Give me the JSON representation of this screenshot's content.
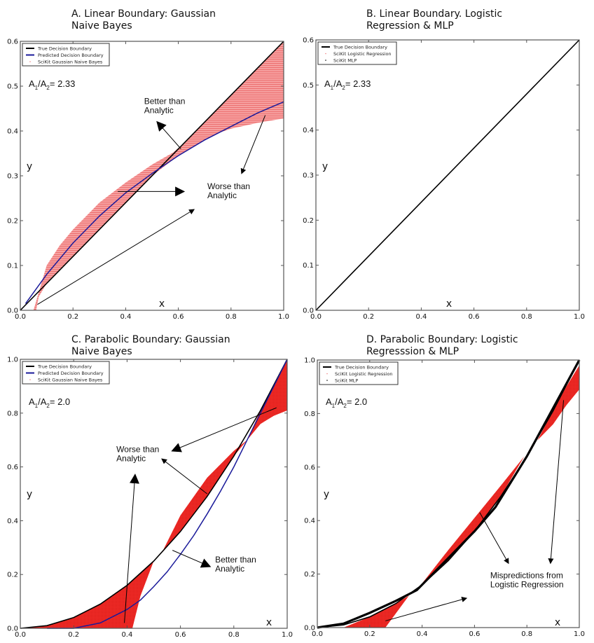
{
  "chart_data": [
    {
      "id": "A",
      "type": "line",
      "title_lines": [
        "A. Linear Boundary: Gaussian",
        "Naive Bayes"
      ],
      "xlabel": "x",
      "ylabel": "y",
      "xlim": [
        0.0,
        1.0
      ],
      "ylim": [
        0.0,
        0.6
      ],
      "xticks": [
        "0.0",
        "0.2",
        "0.4",
        "0.6",
        "0.8",
        "1.0"
      ],
      "yticks": [
        "0.0",
        "0.1",
        "0.2",
        "0.3",
        "0.4",
        "0.5",
        "0.6"
      ],
      "ratio_label": {
        "a1": "A",
        "sub1": "1",
        "a2": "A",
        "sub2": "2",
        "value": "= 2.33"
      },
      "legend": {
        "placement": "top-left",
        "entries": [
          {
            "label": "True Decision Boundary",
            "style": "line",
            "color": "#000000"
          },
          {
            "label": "Predicted Decision Boundary",
            "style": "line",
            "color": "#1a1a9a"
          },
          {
            "label": "SciKit Gaussian Naive Bayes",
            "style": "dot",
            "color": "#f08080"
          }
        ]
      },
      "series": [
        {
          "name": "True Decision Boundary",
          "color": "#000000",
          "x": [
            0.0,
            1.0
          ],
          "y": [
            0.0,
            0.6
          ]
        },
        {
          "name": "Predicted Decision Boundary",
          "color": "#1a1a9a",
          "x": [
            0.02,
            0.1,
            0.2,
            0.3,
            0.4,
            0.5,
            0.6,
            0.7,
            0.8,
            0.9,
            1.0
          ],
          "y": [
            0.015,
            0.08,
            0.15,
            0.21,
            0.262,
            0.305,
            0.345,
            0.38,
            0.41,
            0.44,
            0.465
          ]
        }
      ],
      "fill_regions": [
        {
          "name": "SciKit Gaussian Naive Bayes mispredictions",
          "color": "#f28b8b",
          "upper": {
            "x": [
              0.0,
              0.05,
              0.1,
              0.15,
              0.2,
              0.3,
              0.4,
              0.5,
              0.58,
              0.62,
              0.7,
              0.8,
              0.9,
              1.0
            ],
            "y": [
              0.0,
              0.0,
              0.1,
              0.145,
              0.18,
              0.24,
              0.285,
              0.325,
              0.352,
              0.372,
              0.42,
              0.48,
              0.54,
              0.6
            ]
          },
          "lower": {
            "x": [
              0.0,
              0.02,
              0.06,
              0.07,
              0.1,
              0.2,
              0.3,
              0.4,
              0.5,
              0.6,
              0.7,
              0.75,
              0.8,
              0.9,
              1.0
            ],
            "y": [
              0.0,
              0.0,
              0.0,
              0.03,
              0.06,
              0.12,
              0.18,
              0.24,
              0.3,
              0.345,
              0.38,
              0.395,
              0.405,
              0.418,
              0.428
            ]
          }
        }
      ],
      "annotations": [
        {
          "text_lines": [
            "Better than",
            "Analytic"
          ],
          "at": [
            0.47,
            0.46
          ],
          "arrow_from": [
            0.61,
            0.36
          ],
          "arrow_to": [
            0.52,
            0.42
          ]
        },
        {
          "text_lines": [
            "Worse than",
            "Analytic"
          ],
          "at": [
            0.71,
            0.27
          ],
          "arrow_from": [
            0.37,
            0.265
          ],
          "arrow_to": [
            0.62,
            0.265
          ]
        },
        {
          "text_lines": [],
          "at": [
            0.0,
            0.0
          ],
          "arrow_from": [
            0.93,
            0.435
          ],
          "arrow_to": [
            0.84,
            0.305
          ]
        },
        {
          "text_lines": [],
          "at": [
            0.0,
            0.0
          ],
          "arrow_from": [
            0.065,
            0.013
          ],
          "arrow_to": [
            0.66,
            0.225
          ]
        }
      ]
    },
    {
      "id": "B",
      "type": "line",
      "title_lines": [
        "B. Linear Boundary. Logistic",
        "Regression & MLP"
      ],
      "xlabel": "x",
      "ylabel": "y",
      "xlim": [
        0.0,
        1.0
      ],
      "ylim": [
        0.0,
        0.6
      ],
      "xticks": [
        "0.0",
        "0.2",
        "0.4",
        "0.6",
        "0.8",
        "1.0"
      ],
      "yticks": [
        "0.0",
        "0.1",
        "0.2",
        "0.3",
        "0.4",
        "0.5",
        "0.6"
      ],
      "ratio_label": {
        "a1": "A",
        "sub1": "1",
        "a2": "A",
        "sub2": "2",
        "value": "= 2.33"
      },
      "legend": {
        "placement": "top-left",
        "entries": [
          {
            "label": "True Decision Boundary",
            "style": "line",
            "color": "#000000"
          },
          {
            "label": "SciKit Logistic Regression",
            "style": "dot",
            "color": "#f08080"
          },
          {
            "label": "SciKit MLP",
            "style": "dot",
            "color": "#000000"
          }
        ]
      },
      "series": [
        {
          "name": "True Decision Boundary",
          "color": "#000000",
          "x": [
            0.0,
            1.0
          ],
          "y": [
            0.0,
            0.6
          ]
        }
      ],
      "fill_regions": [],
      "annotations": []
    },
    {
      "id": "C",
      "type": "line",
      "title_lines": [
        "C. Parabolic Boundary: Gaussian",
        "Naive Bayes"
      ],
      "xlabel": "x",
      "ylabel": "y",
      "xlim": [
        0.0,
        1.0
      ],
      "ylim": [
        0.0,
        1.0
      ],
      "xticks": [
        "0.0",
        "0.2",
        "0.4",
        "0.6",
        "0.8",
        "1.0"
      ],
      "yticks": [
        "0.0",
        "0.2",
        "0.4",
        "0.6",
        "0.8",
        "1.0"
      ],
      "ratio_label": {
        "a1": "A",
        "sub1": "1",
        "a2": "A",
        "sub2": "2",
        "value": "= 2.0"
      },
      "legend": {
        "placement": "top-left",
        "entries": [
          {
            "label": "True Decision Boundary",
            "style": "line",
            "color": "#000000"
          },
          {
            "label": "Predicted Decision Boundary",
            "style": "line",
            "color": "#1a1a9a"
          },
          {
            "label": "SciKit Gaussian Naive Bayes",
            "style": "dot",
            "color": "#f08080"
          }
        ]
      },
      "series": [
        {
          "name": "True Decision Boundary",
          "color": "#000000",
          "x": [
            0.0,
            0.1,
            0.2,
            0.3,
            0.4,
            0.5,
            0.6,
            0.7,
            0.8,
            0.9,
            1.0
          ],
          "y": [
            0.0,
            0.01,
            0.04,
            0.09,
            0.16,
            0.25,
            0.36,
            0.49,
            0.64,
            0.81,
            1.0
          ]
        },
        {
          "name": "Predicted Decision Boundary",
          "color": "#1a1a9a",
          "x": [
            0.1,
            0.2,
            0.3,
            0.4,
            0.45,
            0.5,
            0.55,
            0.6,
            0.65,
            0.7,
            0.75,
            0.8,
            0.85,
            0.9,
            0.95,
            1.0
          ],
          "y": [
            0.0,
            0.0,
            0.02,
            0.07,
            0.105,
            0.155,
            0.21,
            0.275,
            0.345,
            0.425,
            0.51,
            0.6,
            0.7,
            0.8,
            0.9,
            1.0
          ]
        }
      ],
      "fill_regions": [
        {
          "name": "SciKit Gaussian Naive Bayes mispredictions (left)",
          "color": "#e8231e",
          "upper": {
            "x": [
              0.0,
              0.1,
              0.2,
              0.3,
              0.4,
              0.5,
              0.53
            ],
            "y": [
              0.0,
              0.01,
              0.04,
              0.09,
              0.16,
              0.25,
              0.28
            ]
          },
          "lower": {
            "x": [
              0.0,
              0.1,
              0.2,
              0.3,
              0.4,
              0.42,
              0.45,
              0.5,
              0.53
            ],
            "y": [
              0.0,
              0.0,
              0.0,
              0.0,
              0.0,
              0.0,
              0.12,
              0.25,
              0.28
            ]
          }
        },
        {
          "name": "SciKit Gaussian Naive Bayes mispredictions (middle)",
          "color": "#e8231e",
          "upper": {
            "x": [
              0.53,
              0.6,
              0.7,
              0.8,
              0.85
            ],
            "y": [
              0.28,
              0.42,
              0.56,
              0.66,
              0.7
            ]
          },
          "lower": {
            "x": [
              0.53,
              0.6,
              0.7,
              0.8,
              0.85
            ],
            "y": [
              0.28,
              0.36,
              0.49,
              0.64,
              0.7
            ]
          }
        },
        {
          "name": "SciKit Gaussian Naive Bayes mispredictions (right)",
          "color": "#e8231e",
          "upper": {
            "x": [
              0.85,
              0.9,
              0.95,
              1.0
            ],
            "y": [
              0.7,
              0.81,
              0.9,
              1.0
            ]
          },
          "lower": {
            "x": [
              0.85,
              0.9,
              0.95,
              1.0
            ],
            "y": [
              0.7,
              0.76,
              0.79,
              0.81
            ]
          }
        }
      ],
      "annotations": [
        {
          "text_lines": [
            "Worse than",
            "Analytic"
          ],
          "at": [
            0.36,
            0.655
          ],
          "arrow_from": [
            0.96,
            0.82
          ],
          "arrow_to": [
            0.57,
            0.66
          ]
        },
        {
          "text_lines": [],
          "at": [
            0.0,
            0.0
          ],
          "arrow_from": [
            0.7,
            0.5
          ],
          "arrow_to": [
            0.53,
            0.63
          ]
        },
        {
          "text_lines": [],
          "at": [
            0.0,
            0.0
          ],
          "arrow_from": [
            0.39,
            0.02
          ],
          "arrow_to": [
            0.43,
            0.57
          ]
        },
        {
          "text_lines": [
            "Better than",
            "Analytic"
          ],
          "at": [
            0.73,
            0.245
          ],
          "arrow_from": [
            0.57,
            0.29
          ],
          "arrow_to": [
            0.71,
            0.23
          ]
        }
      ]
    },
    {
      "id": "D",
      "type": "line",
      "title_lines": [
        "D. Parabolic Boundary: Logistic",
        "Regresssion & MLP"
      ],
      "xlabel": "x",
      "ylabel": "y",
      "xlim": [
        0.0,
        1.0
      ],
      "ylim": [
        0.0,
        1.0
      ],
      "xticks": [
        "0.0",
        "0.2",
        "0.4",
        "0.6",
        "0.8",
        "1.0"
      ],
      "yticks": [
        "0.0",
        "0.2",
        "0.4",
        "0.6",
        "0.8",
        "1.0"
      ],
      "ratio_label": {
        "a1": "A",
        "sub1": "1",
        "a2": "A",
        "sub2": "2",
        "value": "= 2.0"
      },
      "legend": {
        "placement": "top-left",
        "entries": [
          {
            "label": "True Decision Boundary",
            "style": "line",
            "color": "#000000"
          },
          {
            "label": "SciKit Logistic Regression",
            "style": "dot",
            "color": "#f08080"
          },
          {
            "label": "SciKit MLP",
            "style": "dot",
            "color": "#000000"
          }
        ]
      },
      "series": [
        {
          "name": "True Decision Boundary",
          "color": "#000000",
          "x": [
            0.0,
            0.1,
            0.2,
            0.3,
            0.4,
            0.5,
            0.6,
            0.7,
            0.8,
            0.9,
            1.0
          ],
          "y": [
            0.0,
            0.01,
            0.04,
            0.09,
            0.16,
            0.25,
            0.36,
            0.49,
            0.64,
            0.81,
            1.0
          ]
        },
        {
          "name": "SciKit MLP",
          "color": "#000000",
          "x": [
            0.0,
            0.1,
            0.2,
            0.3,
            0.38,
            0.5,
            0.6,
            0.68,
            0.8,
            0.9,
            1.0
          ],
          "y": [
            0.0,
            0.015,
            0.055,
            0.1,
            0.14,
            0.26,
            0.36,
            0.45,
            0.64,
            0.82,
            1.0
          ]
        }
      ],
      "fill_regions": [
        {
          "name": "SciKit Logistic Regression mispredictions (lower)",
          "color": "#e8231e",
          "upper": {
            "x": [
              0.1,
              0.2,
              0.3,
              0.35
            ],
            "y": [
              0.0,
              0.04,
              0.09,
              0.12
            ]
          },
          "lower": {
            "x": [
              0.1,
              0.2,
              0.26,
              0.35
            ],
            "y": [
              0.0,
              0.0,
              0.0,
              0.12
            ]
          }
        },
        {
          "name": "SciKit Logistic Regression mispredictions (middle)",
          "color": "#e8231e",
          "upper": {
            "x": [
              0.38,
              0.5,
              0.6,
              0.7,
              0.79
            ],
            "y": [
              0.14,
              0.29,
              0.41,
              0.53,
              0.64
            ]
          },
          "lower": {
            "x": [
              0.38,
              0.5,
              0.6,
              0.7,
              0.79
            ],
            "y": [
              0.14,
              0.25,
              0.36,
              0.49,
              0.64
            ]
          }
        },
        {
          "name": "SciKit Logistic Regression mispredictions (upper)",
          "color": "#e8231e",
          "upper": {
            "x": [
              0.84,
              0.9,
              0.95,
              1.0
            ],
            "y": [
              0.7,
              0.81,
              0.9,
              0.98
            ]
          },
          "lower": {
            "x": [
              0.84,
              0.9,
              0.95,
              1.0
            ],
            "y": [
              0.7,
              0.76,
              0.83,
              0.89
            ]
          }
        }
      ],
      "annotations": [
        {
          "text_lines": [
            "Mispredictions from",
            "Logistic Regression"
          ],
          "at": [
            0.66,
            0.185
          ],
          "arrow_from": [
            0.62,
            0.43
          ],
          "arrow_to": [
            0.73,
            0.24
          ]
        },
        {
          "text_lines": [],
          "at": [
            0.0,
            0.0
          ],
          "arrow_from": [
            0.94,
            0.85
          ],
          "arrow_to": [
            0.89,
            0.24
          ]
        },
        {
          "text_lines": [],
          "at": [
            0.0,
            0.0
          ],
          "arrow_from": [
            0.26,
            0.025
          ],
          "arrow_to": [
            0.57,
            0.11
          ]
        }
      ]
    }
  ]
}
